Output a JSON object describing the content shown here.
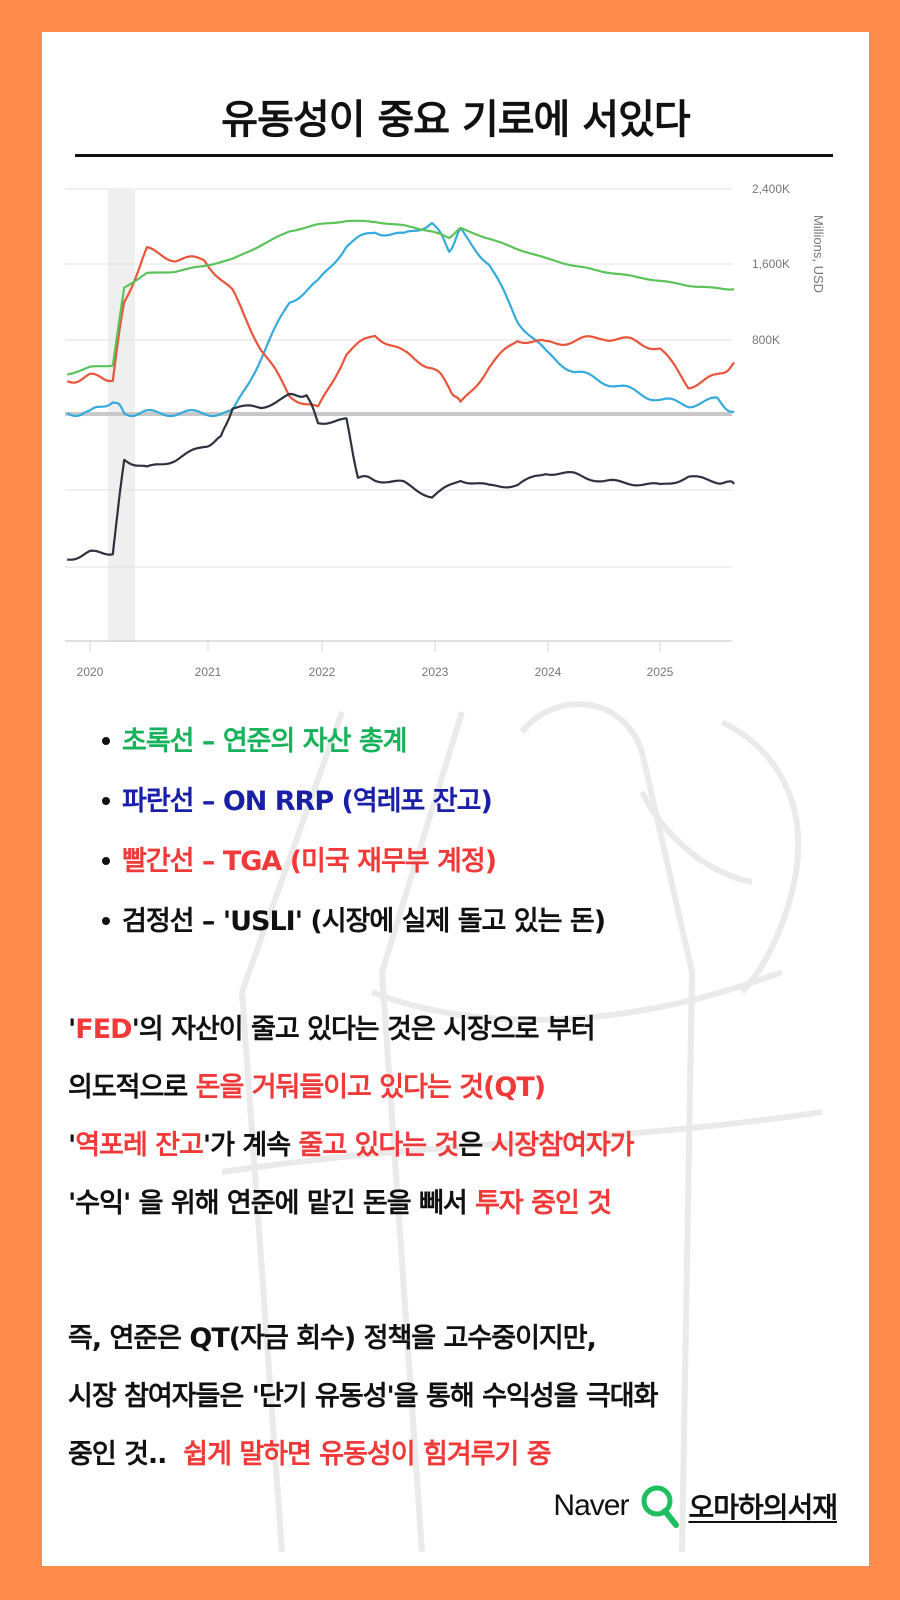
{
  "title": "유동성이 중요 기로에 서있다",
  "colors": {
    "border": "#FF8C4A",
    "fed_assets_green": "#5CC35A",
    "rrp_blue": "#35AADB",
    "tga_red": "#E8553A",
    "usli_black": "#2E3140",
    "highlight_red": "#F03A3A",
    "legend_green": "#18B25A",
    "legend_blue": "#1A1FA8"
  },
  "chart_data": {
    "type": "line",
    "title": "",
    "xlabel": "",
    "ylabel": "Millions, USD",
    "x_ticks": [
      "2020",
      "2021",
      "2022",
      "2023",
      "2024",
      "2025"
    ],
    "panels": [
      {
        "name": "top",
        "y_ticks": [
          "2,400K",
          "1,600K",
          "800K"
        ],
        "ylim": [
          0,
          2400
        ],
        "grid": true,
        "x": [
          2019.8,
          2020.0,
          2020.2,
          2020.3,
          2020.5,
          2020.75,
          2021.0,
          2021.25,
          2021.5,
          2021.75,
          2022.0,
          2022.25,
          2022.5,
          2022.75,
          2023.0,
          2023.15,
          2023.25,
          2023.5,
          2023.75,
          2024.0,
          2024.25,
          2024.5,
          2024.75,
          2025.0,
          2025.25,
          2025.5,
          2025.65
        ],
        "series": [
          {
            "name": "초록선 - 연준의 자산 총계 (Fed total assets)",
            "color": "#5CC35A",
            "values": [
              420,
              500,
              520,
              1350,
              1500,
              1520,
              1580,
              1650,
              1800,
              1950,
              2020,
              2060,
              2050,
              2010,
              1950,
              1880,
              1980,
              1870,
              1760,
              1660,
              1580,
              1520,
              1470,
              1420,
              1370,
              1340,
              1330
            ]
          },
          {
            "name": "파란선 - ON RRP (역레포 잔고)",
            "color": "#35AADB",
            "values": [
              10,
              10,
              150,
              10,
              10,
              10,
              10,
              10,
              600,
              1200,
              1400,
              1800,
              1950,
              1900,
              2050,
              1750,
              1950,
              1600,
              1000,
              650,
              450,
              350,
              250,
              150,
              100,
              150,
              20
            ]
          },
          {
            "name": "빨간선 - TGA (미국 재무부 계정)",
            "color": "#E8553A",
            "values": [
              350,
              400,
              380,
              1200,
              1750,
              1650,
              1650,
              1300,
              700,
              200,
              50,
              650,
              850,
              650,
              500,
              300,
              100,
              500,
              800,
              750,
              780,
              820,
              780,
              700,
              300,
              400,
              550
            ]
          }
        ]
      },
      {
        "name": "bottom",
        "y_ticks": [],
        "grid": true,
        "note": "No y-axis labels shown; values are relative (0 = lowest gridline area, 100 = first gridline)",
        "x": [
          2019.8,
          2020.0,
          2020.2,
          2020.3,
          2020.5,
          2020.75,
          2021.0,
          2021.15,
          2021.25,
          2021.5,
          2021.75,
          2021.9,
          2022.0,
          2022.25,
          2022.35,
          2022.5,
          2022.75,
          2023.0,
          2023.25,
          2023.5,
          2023.75,
          2024.0,
          2024.25,
          2024.5,
          2024.75,
          2025.0,
          2025.25,
          2025.5,
          2025.65
        ],
        "series": [
          {
            "name": "검정선 - 'USLI' (시장에 실제 돌고 있는 돈)",
            "color": "#2E3140",
            "values": [
              20,
              28,
              28,
              135,
              125,
              135,
              150,
              160,
              195,
              195,
              208,
              210,
              178,
              180,
              115,
              112,
              108,
              92,
              112,
              104,
              106,
              120,
              118,
              110,
              108,
              105,
              115,
              110,
              107
            ]
          }
        ]
      }
    ],
    "shaded_region": {
      "x_start": 2020.1,
      "x_end": 2020.35,
      "color": "#EFEFEF"
    },
    "legend_position": "below (text bullets)"
  },
  "legend": [
    {
      "label": "초록선 – 연준의 자산 총계",
      "color_class": "green"
    },
    {
      "label": "파란선 –  ON RRP (역레포 잔고)",
      "color_class": "blue"
    },
    {
      "label": "빨간선 – TGA (미국 재무부 계정)",
      "color_class": "red"
    },
    {
      "label": "검정선 – 'USLI' (시장에 실제 돌고 있는 돈)",
      "color_class": "black"
    }
  ],
  "paragraph1": {
    "line1": {
      "q1": "'",
      "fed": "FED",
      "q2": "'",
      "rest": "의 자산이 줄고 있다는 것은 시장으로 부터"
    },
    "line2": {
      "a": "의도적으로 ",
      "b": "돈을 거둬들이고 있다는 것(QT)"
    },
    "line3": {
      "q1": "'",
      "a": "역포레 잔고",
      "b": "'가 계속 ",
      "c": "줄고 있다는 것",
      "d": "은 ",
      "e": "시장참여자가"
    },
    "line4": {
      "a": "'수익' 을 위해 연준에 맡긴 돈을 빼서 ",
      "b": "투자 중인 것"
    }
  },
  "paragraph2": {
    "line1": "즉, 연준은 QT(자금 회수) 정책을 고수중이지만,",
    "line2": "시장 참여자들은 '단기 유동성'을 통해 수익성을 극대화",
    "line3": {
      "a": "중인 것..  ",
      "b": "쉽게 말하면 유동성이 힘겨루기 중"
    }
  },
  "footer": {
    "naver": "Naver",
    "icon": "magnifier-icon",
    "blog": "오마하의서재"
  }
}
